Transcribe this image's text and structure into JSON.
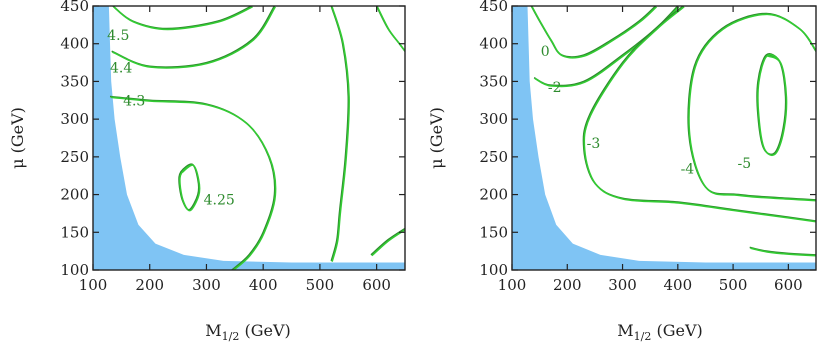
{
  "chart_data": [
    {
      "type": "contour",
      "panel": "left",
      "xlabel": "M1/2 (GeV)",
      "xlabel_main": "M",
      "xlabel_sub": "1/2",
      "xlabel_unit": " (GeV)",
      "ylabel": "μ (GeV)",
      "xlim": [
        100,
        650
      ],
      "ylim": [
        100,
        450
      ],
      "xticks": [
        100,
        200,
        300,
        400,
        500,
        600
      ],
      "yticks": [
        100,
        150,
        200,
        250,
        300,
        350,
        400,
        450
      ],
      "excluded_region_color": "#7fc4f4",
      "contour_colors": [
        "#2e8b2e",
        "#33cc33"
      ],
      "contours": [
        {
          "level": "4.5",
          "label_at": [
            125,
            405
          ],
          "points": [
            [
              135,
              450
            ],
            [
              170,
              430
            ],
            [
              230,
              420
            ],
            [
              320,
              430
            ],
            [
              380,
              450
            ]
          ]
        },
        {
          "level": "4.4",
          "label_at": [
            130,
            362
          ],
          "points": [
            [
              133,
              390
            ],
            [
              200,
              370
            ],
            [
              300,
              375
            ],
            [
              380,
              405
            ],
            [
              420,
              450
            ]
          ]
        },
        {
          "level": "4.3",
          "label_at": [
            153,
            318
          ],
          "points": [
            [
              130,
              330
            ],
            [
              200,
              325
            ],
            [
              300,
              320
            ],
            [
              370,
              295
            ],
            [
              410,
              250
            ],
            [
              420,
              200
            ],
            [
              400,
              150
            ],
            [
              375,
              120
            ],
            [
              345,
              100
            ]
          ]
        },
        {
          "level": "4.25",
          "label_at": [
            295,
            187
          ],
          "closed": true,
          "points": [
            [
              255,
              230
            ],
            [
              275,
              240
            ],
            [
              285,
              220
            ],
            [
              285,
              200
            ],
            [
              270,
              180
            ],
            [
              258,
              192
            ],
            [
              252,
              215
            ]
          ]
        },
        {
          "level": "",
          "points": [
            [
              520,
              450
            ],
            [
              540,
              400
            ],
            [
              550,
              330
            ],
            [
              545,
              250
            ],
            [
              535,
              180
            ],
            [
              530,
              140
            ],
            [
              520,
              112
            ]
          ]
        },
        {
          "level": "",
          "points": [
            [
              600,
              450
            ],
            [
              620,
              420
            ],
            [
              640,
              400
            ],
            [
              650,
              390
            ]
          ]
        },
        {
          "level": "",
          "points": [
            [
              590,
              120
            ],
            [
              620,
              140
            ],
            [
              650,
              155
            ]
          ]
        }
      ]
    },
    {
      "type": "contour",
      "panel": "right",
      "xlabel": "M1/2 (GeV)",
      "xlabel_main": "M",
      "xlabel_sub": "1/2",
      "xlabel_unit": " (GeV)",
      "ylabel": "μ (GeV)",
      "xlim": [
        100,
        650
      ],
      "ylim": [
        100,
        450
      ],
      "xticks": [
        100,
        200,
        300,
        400,
        500,
        600
      ],
      "yticks": [
        100,
        150,
        200,
        250,
        300,
        350,
        400,
        450
      ],
      "excluded_region_color": "#7fc4f4",
      "contour_colors": [
        "#2e8b2e",
        "#33cc33"
      ],
      "contours": [
        {
          "level": "0",
          "label_at": [
            152,
            384
          ],
          "points": [
            [
              135,
              450
            ],
            [
              150,
              430
            ],
            [
              170,
              405
            ],
            [
              190,
              385
            ],
            [
              230,
              385
            ],
            [
              280,
              405
            ],
            [
              330,
              430
            ],
            [
              360,
              450
            ]
          ]
        },
        {
          "level": "-2",
          "label_at": [
            165,
            336
          ],
          "points": [
            [
              140,
              355
            ],
            [
              170,
              345
            ],
            [
              230,
              350
            ],
            [
              300,
              385
            ],
            [
              360,
              420
            ],
            [
              400,
              450
            ]
          ]
        },
        {
          "level": "-3",
          "label_at": [
            235,
            262
          ],
          "points": [
            [
              410,
              450
            ],
            [
              360,
              420
            ],
            [
              300,
              375
            ],
            [
              240,
              305
            ],
            [
              230,
              260
            ],
            [
              250,
              215
            ],
            [
              300,
              195
            ],
            [
              400,
              190
            ],
            [
              500,
              180
            ],
            [
              600,
              170
            ],
            [
              650,
              165
            ]
          ]
        },
        {
          "level": "-4",
          "label_at": [
            405,
            228
          ],
          "points": [
            [
              650,
              390
            ],
            [
              620,
              420
            ],
            [
              560,
              440
            ],
            [
              480,
              420
            ],
            [
              430,
              370
            ],
            [
              420,
              280
            ],
            [
              450,
              210
            ],
            [
              510,
              200
            ],
            [
              600,
              195
            ],
            [
              650,
              193
            ]
          ]
        },
        {
          "level": "-5",
          "label_at": [
            508,
            235
          ],
          "closed": true,
          "points": [
            [
              560,
              385
            ],
            [
              585,
              375
            ],
            [
              595,
              330
            ],
            [
              590,
              285
            ],
            [
              575,
              255
            ],
            [
              555,
              262
            ],
            [
              545,
              305
            ],
            [
              545,
              350
            ]
          ]
        },
        {
          "level": "",
          "points": [
            [
              650,
              120
            ],
            [
              600,
              122
            ],
            [
              560,
              125
            ],
            [
              530,
              130
            ]
          ]
        }
      ]
    }
  ],
  "colors": {
    "excluded": "#7fc4f4",
    "contour_dark": "#2e8b2e",
    "contour_light": "#33cc33",
    "frame": "#222222"
  }
}
